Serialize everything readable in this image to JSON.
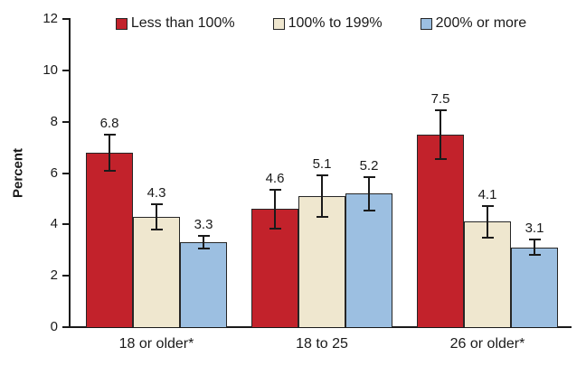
{
  "chart_data": {
    "type": "bar",
    "title": "",
    "xlabel": "",
    "ylabel": "Percent",
    "ylim": [
      0,
      12
    ],
    "yticks": [
      0,
      2,
      4,
      6,
      8,
      10,
      12
    ],
    "grid": false,
    "legend_position": "top",
    "value_labels": true,
    "categories": [
      "18 or older*",
      "18 to 25",
      "26 or older*"
    ],
    "series": [
      {
        "name": "Less than 100%",
        "color": "#C2222B",
        "values": [
          6.8,
          4.6,
          7.5
        ],
        "errors": [
          0.7,
          0.75,
          0.95
        ]
      },
      {
        "name": "100% to 199%",
        "color": "#EFE7CF",
        "values": [
          4.3,
          5.1,
          4.1
        ],
        "errors": [
          0.5,
          0.8,
          0.6
        ]
      },
      {
        "name": "200% or more",
        "color": "#9CBFE1",
        "values": [
          3.3,
          5.2,
          3.1
        ],
        "errors": [
          0.25,
          0.65,
          0.3
        ]
      }
    ],
    "colors": {
      "bar_outline": "#262626",
      "error_bar": "#1a1a1a",
      "axis": "#1a1a1a",
      "text": "#1a1a1a"
    }
  }
}
